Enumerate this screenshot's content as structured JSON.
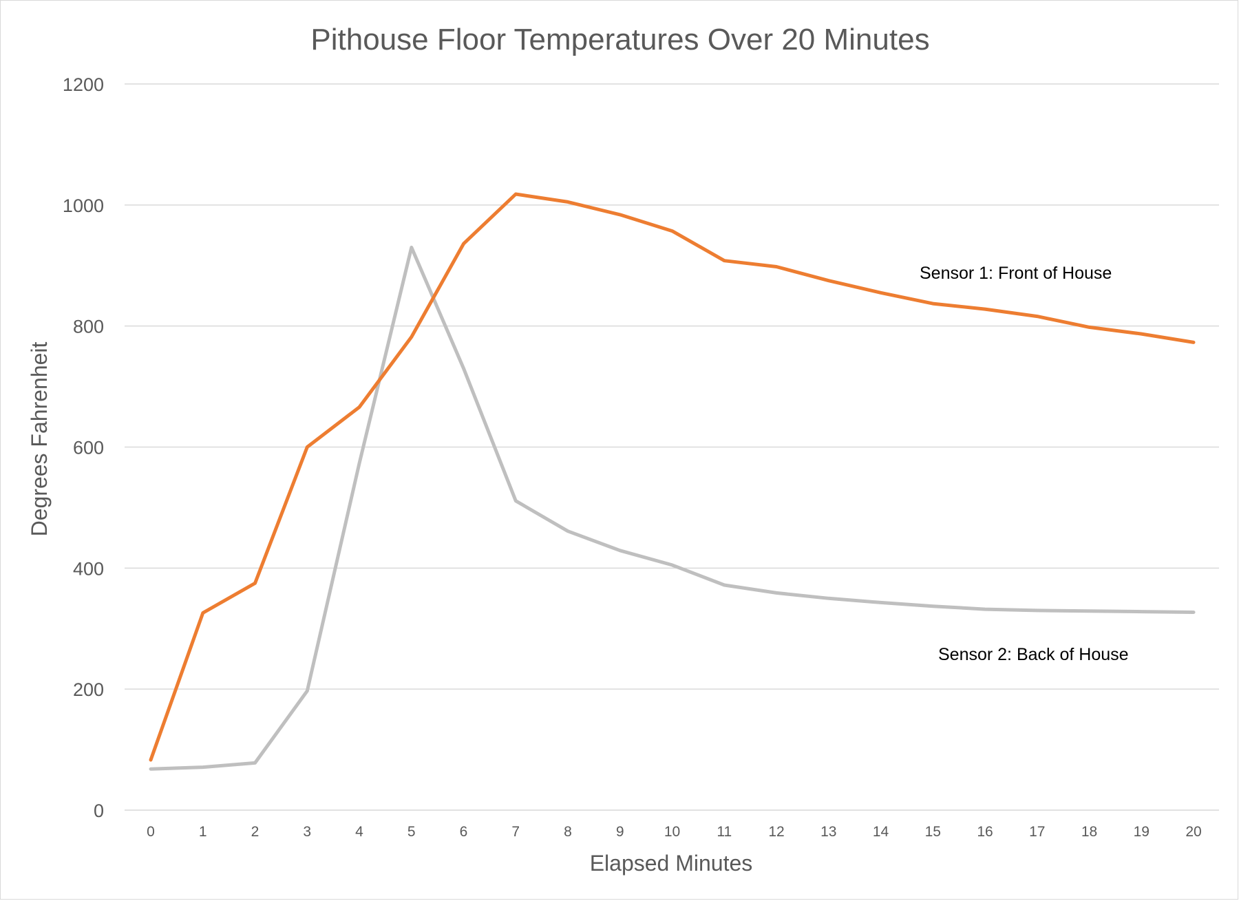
{
  "chart_data": {
    "type": "line",
    "title": "Pithouse Floor Temperatures Over 20 Minutes",
    "xlabel": "Elapsed Minutes",
    "ylabel": "Degrees Fahrenheit",
    "x": [
      0,
      1,
      2,
      3,
      4,
      5,
      6,
      7,
      8,
      9,
      10,
      11,
      12,
      13,
      14,
      15,
      16,
      17,
      18,
      19,
      20
    ],
    "ylim": [
      0,
      1200
    ],
    "yticks": [
      0,
      200,
      400,
      600,
      800,
      1000,
      1200
    ],
    "grid": true,
    "series": [
      {
        "label": "Sensor 1: Front of House",
        "color": "#ED7D31",
        "values": [
          83,
          326,
          375,
          600,
          666,
          782,
          936,
          1018,
          1005,
          984,
          957,
          908,
          898,
          875,
          855,
          837,
          828,
          816,
          798,
          787,
          773
        ]
      },
      {
        "label": "Sensor 2: Back of House",
        "color": "#BFBFBF",
        "values": [
          68,
          71,
          78,
          197,
          573,
          930,
          730,
          511,
          461,
          429,
          405,
          372,
          359,
          350,
          343,
          337,
          332,
          330,
          329,
          328,
          327
        ]
      }
    ]
  }
}
